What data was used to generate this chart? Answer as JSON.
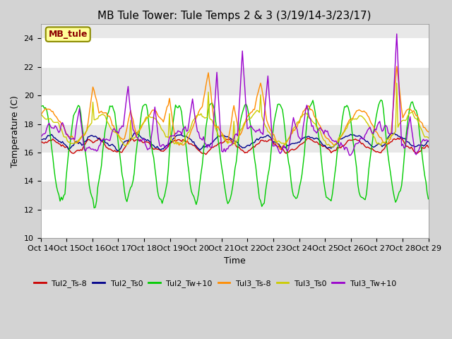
{
  "title": "MB Tule Tower: Tule Temps 2 & 3 (3/19/14-3/23/17)",
  "xlabel": "Time",
  "ylabel": "Temperature (C)",
  "ylim": [
    10,
    25
  ],
  "yticks": [
    10,
    12,
    14,
    16,
    18,
    20,
    22,
    24
  ],
  "xlabels": [
    "Oct 14",
    "Oct 15",
    "Oct 16",
    "Oct 17",
    "Oct 18",
    "Oct 19",
    "Oct 20",
    "Oct 21",
    "Oct 22",
    "Oct 23",
    "Oct 24",
    "Oct 25",
    "Oct 26",
    "Oct 27",
    "Oct 28",
    "Oct 29"
  ],
  "n_points": 320,
  "legend_labels": [
    "Tul2_Ts-8",
    "Tul2_Ts0",
    "Tul2_Tw+10",
    "Tul3_Ts-8",
    "Tul3_Ts0",
    "Tul3_Tw+10"
  ],
  "line_colors": [
    "#cc0000",
    "#00008b",
    "#00cc00",
    "#ff8c00",
    "#cccc00",
    "#9900cc"
  ],
  "bg_color": "#d3d3d3",
  "plot_bg_color": "#e8e8e8",
  "band_color": "#ffffff",
  "annotation_text": "MB_tule",
  "annotation_color": "#8b0000",
  "annotation_bg": "#ffff99",
  "title_fontsize": 11,
  "label_fontsize": 9,
  "tick_fontsize": 8
}
